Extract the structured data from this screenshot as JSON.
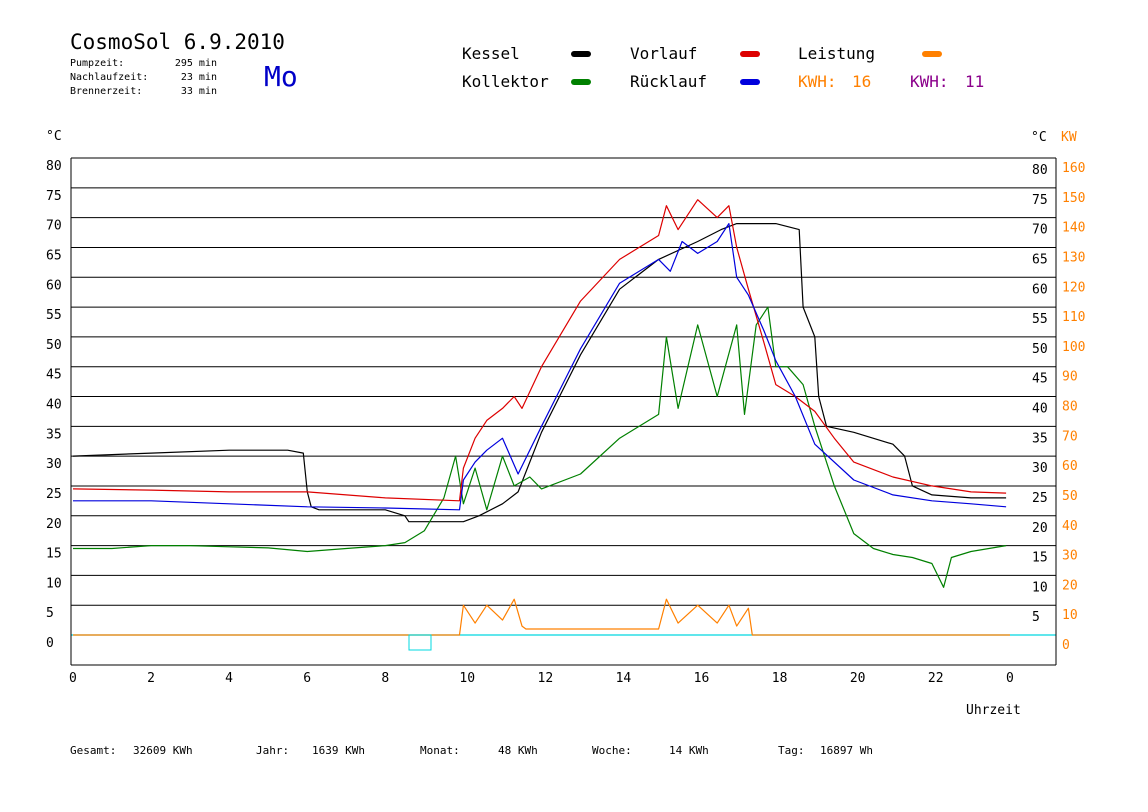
{
  "header": {
    "title": "CosmoSol 6.9.2010",
    "day": "Mo",
    "stats": [
      {
        "label": "Pumpzeit:",
        "value": "295 min"
      },
      {
        "label": "Nachlaufzeit:",
        "value": "23 min"
      },
      {
        "label": "Brennerzeit:",
        "value": "33 min"
      }
    ]
  },
  "legend": {
    "kessel": "Kessel",
    "kollektor": "Kollektor",
    "vorlauf": "Vorlauf",
    "ruecklauf": "Rücklauf",
    "leistung": "Leistung",
    "kwh1_label": "KWH:",
    "kwh1_value": "16",
    "kwh2_label": "KWH:",
    "kwh2_value": "11"
  },
  "colors": {
    "kessel": "#000000",
    "kollektor": "#008000",
    "vorlauf": "#dd0000",
    "ruecklauf": "#0000dd",
    "leistung": "#ff8000",
    "kwh2": "#8b008b",
    "zero_line": "#00d8e0"
  },
  "footer": {
    "gesamt_label": "Gesamt:",
    "gesamt_value": "32609 KWh",
    "jahr_label": "Jahr:",
    "jahr_value": "1639 KWh",
    "monat_label": "Monat:",
    "monat_value": "48 KWh",
    "woche_label": "Woche:",
    "woche_value": "14 KWh",
    "tag_label": "Tag:",
    "tag_value": "16897 Wh"
  },
  "chart_data": {
    "type": "line",
    "xlabel": "Uhrzeit",
    "ylabel_left": "°C",
    "ylabel_right_temp": "°C",
    "ylabel_right_power": "KW",
    "xlim": [
      0,
      24
    ],
    "ylim": [
      0,
      80
    ],
    "y_ticks": [
      0,
      5,
      10,
      15,
      20,
      25,
      30,
      35,
      40,
      45,
      50,
      55,
      60,
      65,
      70,
      75,
      80
    ],
    "power_ticks": [
      0,
      10,
      20,
      30,
      40,
      50,
      60,
      70,
      80,
      90,
      100,
      110,
      120,
      130,
      140,
      150,
      160
    ],
    "x_ticks": [
      "0",
      "2",
      "4",
      "6",
      "8",
      "10",
      "12",
      "14",
      "16",
      "18",
      "20",
      "22",
      "0"
    ],
    "series": [
      {
        "name": "Kessel",
        "color": "#000000",
        "x": [
          0,
          2,
          4,
          5.5,
          5.9,
          6.0,
          6.1,
          6.3,
          8.0,
          8.5,
          8.6,
          9.0,
          9.6,
          10.0,
          10.4,
          11.0,
          11.4,
          12.0,
          13.0,
          14.0,
          15.0,
          16.0,
          16.6,
          17.0,
          18.0,
          18.6,
          18.7,
          19.0,
          19.1,
          19.3,
          20.0,
          21.0,
          21.3,
          21.5,
          22.0,
          23.0,
          23.9
        ],
        "y": [
          30,
          30.5,
          31,
          31,
          30.5,
          24,
          21.5,
          21,
          21,
          20,
          19,
          19,
          19,
          19,
          20,
          22,
          24,
          34,
          47,
          58,
          63,
          66,
          68,
          69,
          69,
          68,
          55,
          50,
          40,
          35,
          34,
          32,
          30,
          25,
          23.5,
          23,
          23
        ]
      },
      {
        "name": "Kollektor",
        "color": "#008000",
        "x": [
          0,
          1,
          2,
          3,
          4,
          5,
          6,
          7,
          8,
          8.5,
          9.0,
          9.5,
          9.8,
          10.0,
          10.3,
          10.6,
          11.0,
          11.3,
          11.7,
          12.0,
          13.0,
          14.0,
          15.0,
          15.2,
          15.5,
          16.0,
          16.5,
          17.0,
          17.2,
          17.5,
          17.8,
          18.0,
          18.3,
          18.7,
          19.0,
          19.5,
          20.0,
          20.5,
          21.0,
          21.5,
          22.0,
          22.3,
          22.5,
          23.0,
          23.9
        ],
        "y": [
          14.5,
          14.5,
          15,
          15,
          14.8,
          14.6,
          14,
          14.5,
          15,
          15.5,
          17.5,
          23,
          30,
          22,
          28,
          21,
          30,
          25,
          26.5,
          24.5,
          27,
          33,
          37,
          50,
          38,
          52,
          40,
          52,
          37,
          52,
          55,
          45,
          45,
          42,
          35,
          25,
          17,
          14.5,
          13.5,
          13,
          12,
          8,
          13,
          14,
          15
        ]
      },
      {
        "name": "Vorlauf",
        "color": "#dd0000",
        "x": [
          0,
          2,
          4,
          6,
          8,
          9.9,
          10.0,
          10.3,
          10.6,
          11.0,
          11.3,
          11.5,
          12.0,
          13.0,
          14.0,
          15.0,
          15.2,
          15.5,
          16.0,
          16.5,
          16.8,
          17.0,
          17.3,
          17.7,
          18.0,
          18.5,
          19.0,
          19.5,
          20.0,
          21.0,
          22.0,
          23.0,
          23.9
        ],
        "y": [
          24.5,
          24.3,
          24,
          24,
          23,
          22.5,
          28,
          33,
          36,
          38,
          40,
          38,
          45,
          56,
          63,
          67,
          72,
          68,
          73,
          70,
          72,
          65,
          58,
          49,
          42,
          40,
          37.5,
          33,
          29,
          26.5,
          25,
          24,
          23.8
        ]
      },
      {
        "name": "Rücklauf",
        "color": "#0000dd",
        "x": [
          0,
          2,
          4,
          6,
          8,
          9.9,
          10.0,
          10.3,
          10.6,
          11.0,
          11.4,
          12.0,
          13.0,
          14.0,
          15.0,
          15.3,
          15.6,
          16.0,
          16.5,
          16.8,
          17.0,
          17.3,
          17.7,
          18.0,
          18.5,
          19.0,
          20.0,
          21.0,
          22.0,
          23.0,
          23.9
        ],
        "y": [
          22.5,
          22.5,
          22,
          21.5,
          21.3,
          21,
          26,
          29,
          31,
          33,
          27,
          35,
          48,
          59,
          63,
          61,
          66,
          64,
          66,
          69,
          60,
          57,
          51,
          46,
          40,
          32,
          26,
          23.5,
          22.5,
          22,
          21.5
        ]
      },
      {
        "name": "Leistung",
        "color": "#ff8000",
        "axis": "right",
        "x": [
          0,
          9.9,
          10.0,
          10.3,
          10.6,
          11.0,
          11.3,
          11.5,
          11.6,
          14.0,
          15.0,
          15.2,
          15.5,
          16.0,
          16.5,
          16.8,
          17.0,
          17.3,
          17.4,
          24.0
        ],
        "y": [
          0,
          0,
          10,
          4,
          10,
          5,
          12,
          3,
          2,
          2,
          2,
          12,
          4,
          10,
          4,
          10,
          3,
          9,
          0,
          0
        ]
      }
    ]
  }
}
